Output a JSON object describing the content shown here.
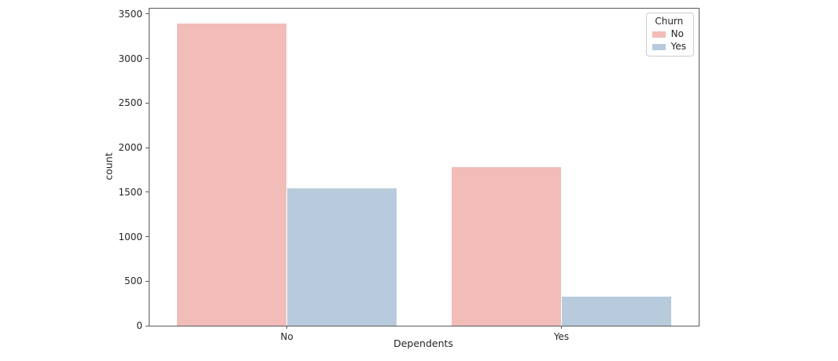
{
  "chart_data": {
    "type": "bar",
    "title": "",
    "xlabel": "Dependents",
    "ylabel": "count",
    "categories": [
      "No",
      "Yes"
    ],
    "series": [
      {
        "name": "No",
        "color": "#f2bcb8",
        "values": [
          3390,
          1784
        ]
      },
      {
        "name": "Yes",
        "color": "#b8cbdd",
        "values": [
          1543,
          326
        ]
      }
    ],
    "ylim": [
      0,
      3560
    ],
    "yticks": [
      0,
      500,
      1000,
      1500,
      2000,
      2500,
      3000,
      3500
    ],
    "bar_group_width": 0.8,
    "grid": false,
    "legend": {
      "title": "Churn",
      "position": "upper right",
      "entries": [
        "No",
        "Yes"
      ]
    }
  }
}
